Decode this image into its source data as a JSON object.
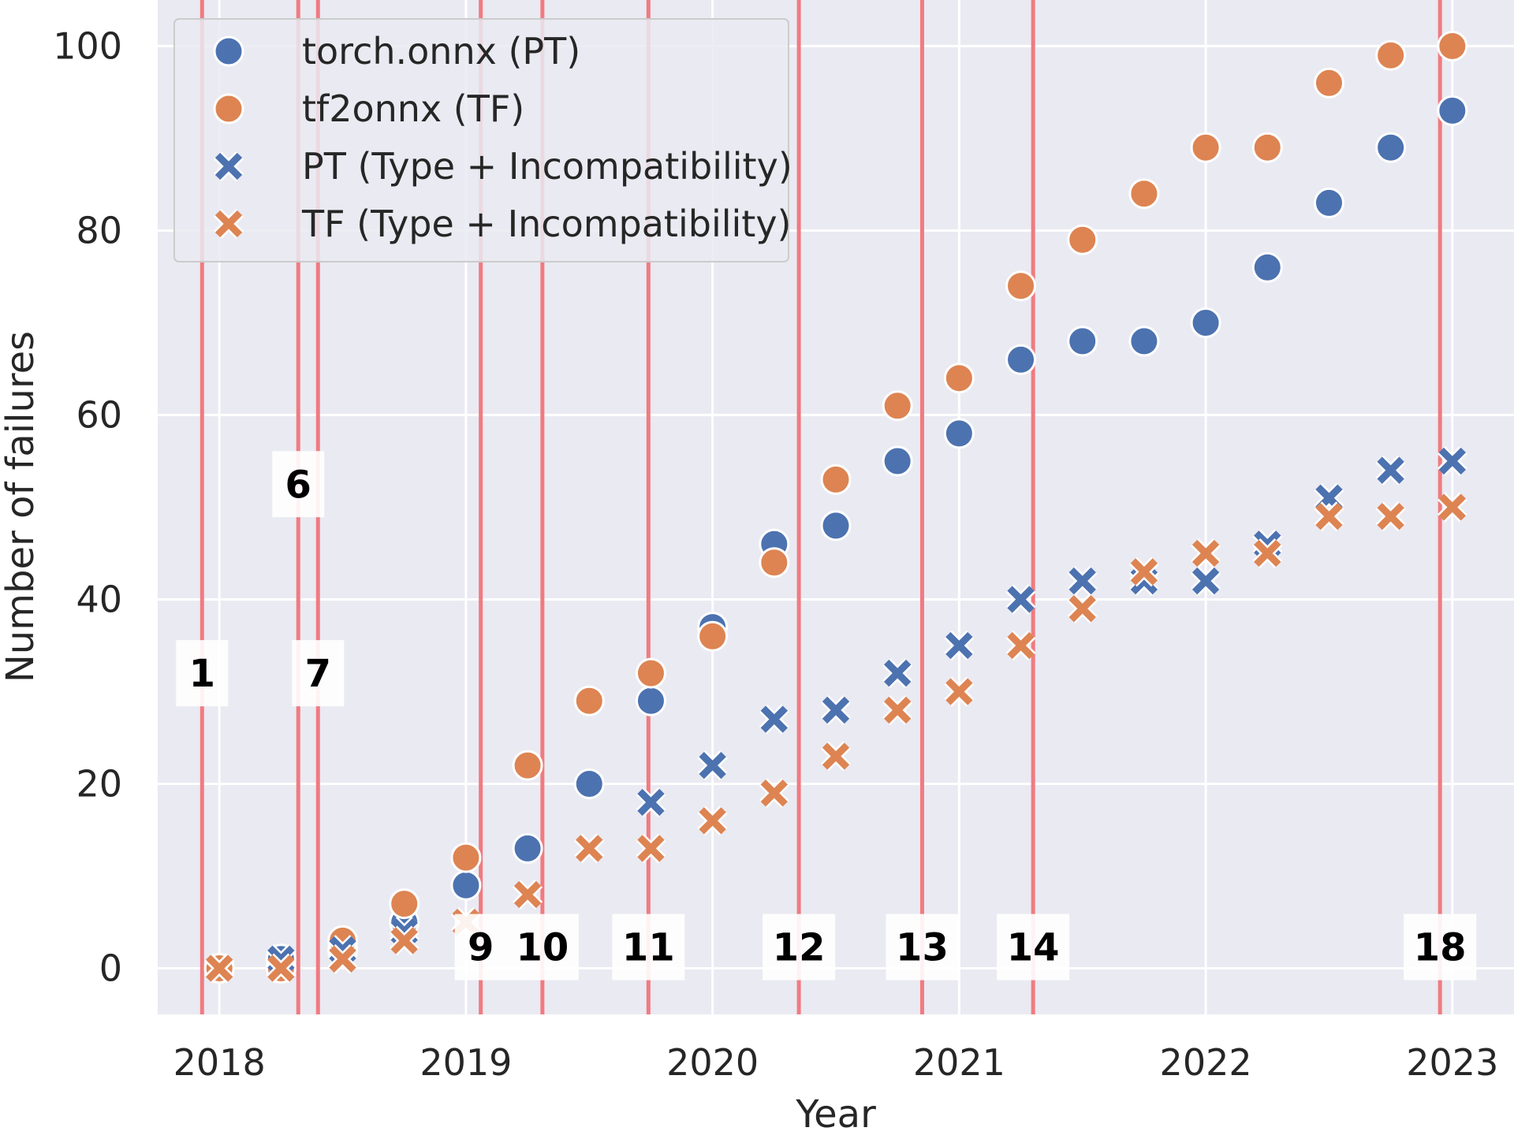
{
  "chart_data": {
    "type": "scatter",
    "xlabel": "Year",
    "ylabel": "Number of failures",
    "xlim": [
      2017.75,
      2023.25
    ],
    "ylim": [
      -5,
      105
    ],
    "x_ticks": [
      "2018",
      "2019",
      "2020",
      "2021",
      "2022",
      "2023"
    ],
    "y_ticks": [
      0,
      20,
      40,
      60,
      80,
      100
    ],
    "grid": true,
    "legend_position": "top-left",
    "x": [
      "2018-01",
      "2018-04",
      "2018-07",
      "2018-10",
      "2019-01",
      "2019-04",
      "2019-07",
      "2019-10",
      "2020-01",
      "2020-04",
      "2020-07",
      "2020-10",
      "2021-01",
      "2021-04",
      "2021-07",
      "2021-10",
      "2022-01",
      "2022-04",
      "2022-07",
      "2022-10",
      "2023-01"
    ],
    "series": [
      {
        "name": "torch.onnx (PT)",
        "marker": "circle",
        "color": "#4c72b0",
        "values": [
          0,
          1,
          2,
          5,
          9,
          13,
          20,
          29,
          37,
          46,
          48,
          55,
          58,
          66,
          68,
          68,
          70,
          76,
          83,
          89,
          93
        ]
      },
      {
        "name": "tf2onnx (TF)",
        "marker": "circle",
        "color": "#dd8452",
        "values": [
          0,
          0,
          3,
          7,
          12,
          22,
          29,
          32,
          36,
          44,
          53,
          61,
          64,
          74,
          79,
          84,
          89,
          89,
          96,
          99,
          100
        ]
      },
      {
        "name": "PT (Type + Incompatibility)",
        "marker": "x",
        "color": "#4c72b0",
        "values": [
          0,
          1,
          2,
          4,
          5,
          8,
          13,
          18,
          22,
          27,
          28,
          32,
          35,
          40,
          42,
          42,
          42,
          46,
          51,
          54,
          55
        ]
      },
      {
        "name": "TF (Type + Incompatibility)",
        "marker": "x",
        "color": "#dd8452",
        "values": [
          0,
          0,
          1,
          3,
          5,
          8,
          13,
          13,
          16,
          19,
          23,
          28,
          30,
          35,
          39,
          43,
          45,
          45,
          49,
          49,
          50
        ]
      }
    ],
    "releases": [
      {
        "label": "1",
        "x": 2017.93,
        "label_y": 32
      },
      {
        "label": "6",
        "x": 2018.32,
        "label_y": 52.5
      },
      {
        "label": "7",
        "x": 2018.4,
        "label_y": 32
      },
      {
        "label": "9",
        "x": 2019.06,
        "label_y": 2.3
      },
      {
        "label": "10",
        "x": 2019.31,
        "label_y": 2.3
      },
      {
        "label": "11",
        "x": 2019.74,
        "label_y": 2.3
      },
      {
        "label": "12",
        "x": 2020.35,
        "label_y": 2.3
      },
      {
        "label": "13",
        "x": 2020.85,
        "label_y": 2.3
      },
      {
        "label": "14",
        "x": 2021.3,
        "label_y": 2.3
      },
      {
        "label": "18",
        "x": 2022.95,
        "label_y": 2.3
      }
    ],
    "colors": {
      "background": "#eaeaf2",
      "grid": "#ffffff",
      "release_line": "#f07b80",
      "pt": "#4c72b0",
      "tf": "#dd8452"
    }
  }
}
